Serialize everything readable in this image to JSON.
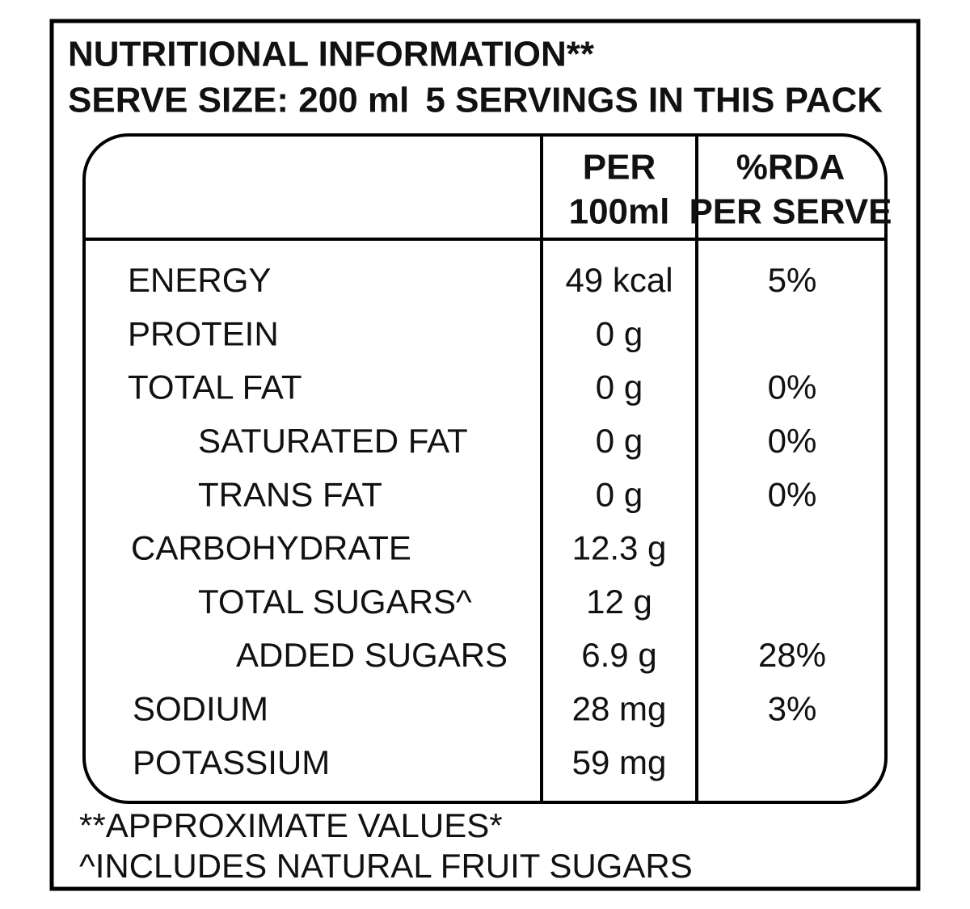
{
  "header": {
    "title": "NUTRITIONAL INFORMATION**",
    "serve_size": "SERVE SIZE: 200 ml",
    "servings": "5 SERVINGS IN THIS PACK"
  },
  "table": {
    "columns": [
      [
        "PER",
        "100ml"
      ],
      [
        "%RDA",
        "PER SERVE"
      ]
    ],
    "rows": [
      [
        "ENERGY",
        "49 kcal",
        "5%"
      ],
      [
        "PROTEIN",
        "0 g",
        null
      ],
      [
        "TOTAL FAT",
        "0 g",
        "0%"
      ],
      [
        "SATURATED FAT",
        "0 g",
        "0%"
      ],
      [
        "TRANS FAT",
        "0 g",
        "0%"
      ],
      [
        "CARBOHYDRATE",
        "12.3 g",
        null
      ],
      [
        "TOTAL SUGARS^",
        "12 g",
        null
      ],
      [
        "ADDED SUGARS",
        "6.9 g",
        "28%"
      ],
      [
        "SODIUM",
        "28 mg",
        "3%"
      ],
      [
        "POTASSIUM",
        "59 mg",
        null
      ]
    ]
  },
  "notes": [
    "**APPROXIMATE VALUES*",
    "^INCLUDES NATURAL FRUIT SUGARS"
  ]
}
